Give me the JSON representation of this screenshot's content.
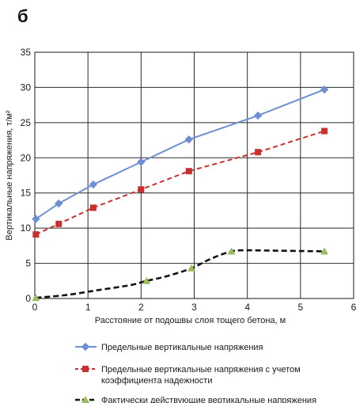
{
  "panel_label": "б",
  "chart_data": {
    "type": "line",
    "xlabel": "Расстояние от подошвы слоя тощего бетона, м",
    "ylabel": "Вертикальные напряжения, т/м²",
    "xlim": [
      0,
      6
    ],
    "ylim": [
      0,
      35
    ],
    "xticks": [
      "0",
      "1",
      "2",
      "3",
      "4",
      "5",
      "6"
    ],
    "yticks": [
      "0",
      "5",
      "10",
      "15",
      "20",
      "25",
      "30",
      "35"
    ],
    "grid": true,
    "legend_position": "bottom",
    "series": [
      {
        "name": "Предельные вертикальные напряжения",
        "legend_lines": [
          "Предельные вертикальные напряжения"
        ],
        "color": "#6e8fd4",
        "line_style": "solid",
        "marker": "diamond",
        "x": [
          0.02,
          0.45,
          1.1,
          2.0,
          2.9,
          4.2,
          5.45
        ],
        "y": [
          11.3,
          13.5,
          16.2,
          19.4,
          22.6,
          26.0,
          29.7
        ]
      },
      {
        "name": "Предельные вертикальные напряжения с учетом коэффициента надежности",
        "legend_lines": [
          "Предельные вертикальные напряжения с учетом",
          "коэффициента надежности"
        ],
        "color": "#c8302f",
        "line_style": "dashed",
        "marker": "square",
        "x": [
          0.02,
          0.45,
          1.1,
          2.0,
          2.9,
          4.2,
          5.45
        ],
        "y": [
          9.1,
          10.6,
          12.9,
          15.5,
          18.1,
          20.8,
          23.8
        ]
      },
      {
        "name": "Фактически действующие вертикальные напряжения",
        "legend_lines": [
          "Фактически действующие вертикальные напряжения"
        ],
        "color": "#111111",
        "line_style": "dashed",
        "marker": "triangle",
        "marker_color": "#9bbb59",
        "x": [
          0.02,
          2.1,
          2.95,
          3.7,
          5.45
        ],
        "y": [
          0.1,
          2.5,
          4.3,
          6.7,
          6.7
        ],
        "curve": [
          [
            0.02,
            0.1
          ],
          [
            0.6,
            0.5
          ],
          [
            1.2,
            1.2
          ],
          [
            1.8,
            1.9
          ],
          [
            2.1,
            2.5
          ],
          [
            2.5,
            3.2
          ],
          [
            2.95,
            4.3
          ],
          [
            3.3,
            5.6
          ],
          [
            3.7,
            6.7
          ],
          [
            4.0,
            6.85
          ],
          [
            4.5,
            6.8
          ],
          [
            5.0,
            6.75
          ],
          [
            5.45,
            6.7
          ]
        ]
      }
    ]
  }
}
